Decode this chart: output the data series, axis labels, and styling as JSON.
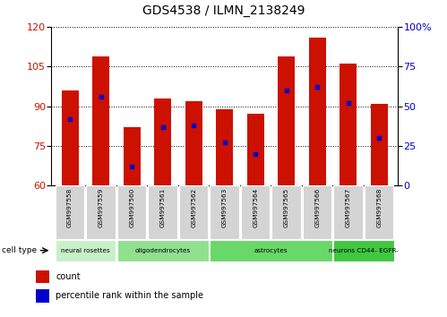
{
  "title": "GDS4538 / ILMN_2138249",
  "samples": [
    "GSM997558",
    "GSM997559",
    "GSM997560",
    "GSM997561",
    "GSM997562",
    "GSM997563",
    "GSM997564",
    "GSM997565",
    "GSM997566",
    "GSM997567",
    "GSM997568"
  ],
  "counts": [
    96,
    109,
    82,
    93,
    92,
    89,
    87,
    109,
    116,
    106,
    91
  ],
  "percentile_ranks": [
    42,
    56,
    12,
    37,
    38,
    27,
    20,
    60,
    62,
    52,
    30
  ],
  "ylim_left": [
    60,
    120
  ],
  "yticks_left": [
    60,
    75,
    90,
    105,
    120
  ],
  "ylim_right": [
    0,
    100
  ],
  "yticks_right": [
    0,
    25,
    50,
    75,
    100
  ],
  "cell_type_groups": [
    {
      "label": "neural rosettes",
      "start": 0,
      "end": 2,
      "color": "#c8f0c8"
    },
    {
      "label": "oligodendrocytes",
      "start": 2,
      "end": 5,
      "color": "#90e090"
    },
    {
      "label": "astrocytes",
      "start": 5,
      "end": 9,
      "color": "#68d868"
    },
    {
      "label": "neurons CD44- EGFR-",
      "start": 9,
      "end": 11,
      "color": "#40c840"
    }
  ],
  "bar_color": "#cc1100",
  "dot_color": "#0000cc",
  "bar_width": 0.55,
  "tick_label_color_left": "#cc1100",
  "tick_label_color_right": "#0000cc",
  "legend_count_label": "count",
  "legend_pct_label": "percentile rank within the sample"
}
